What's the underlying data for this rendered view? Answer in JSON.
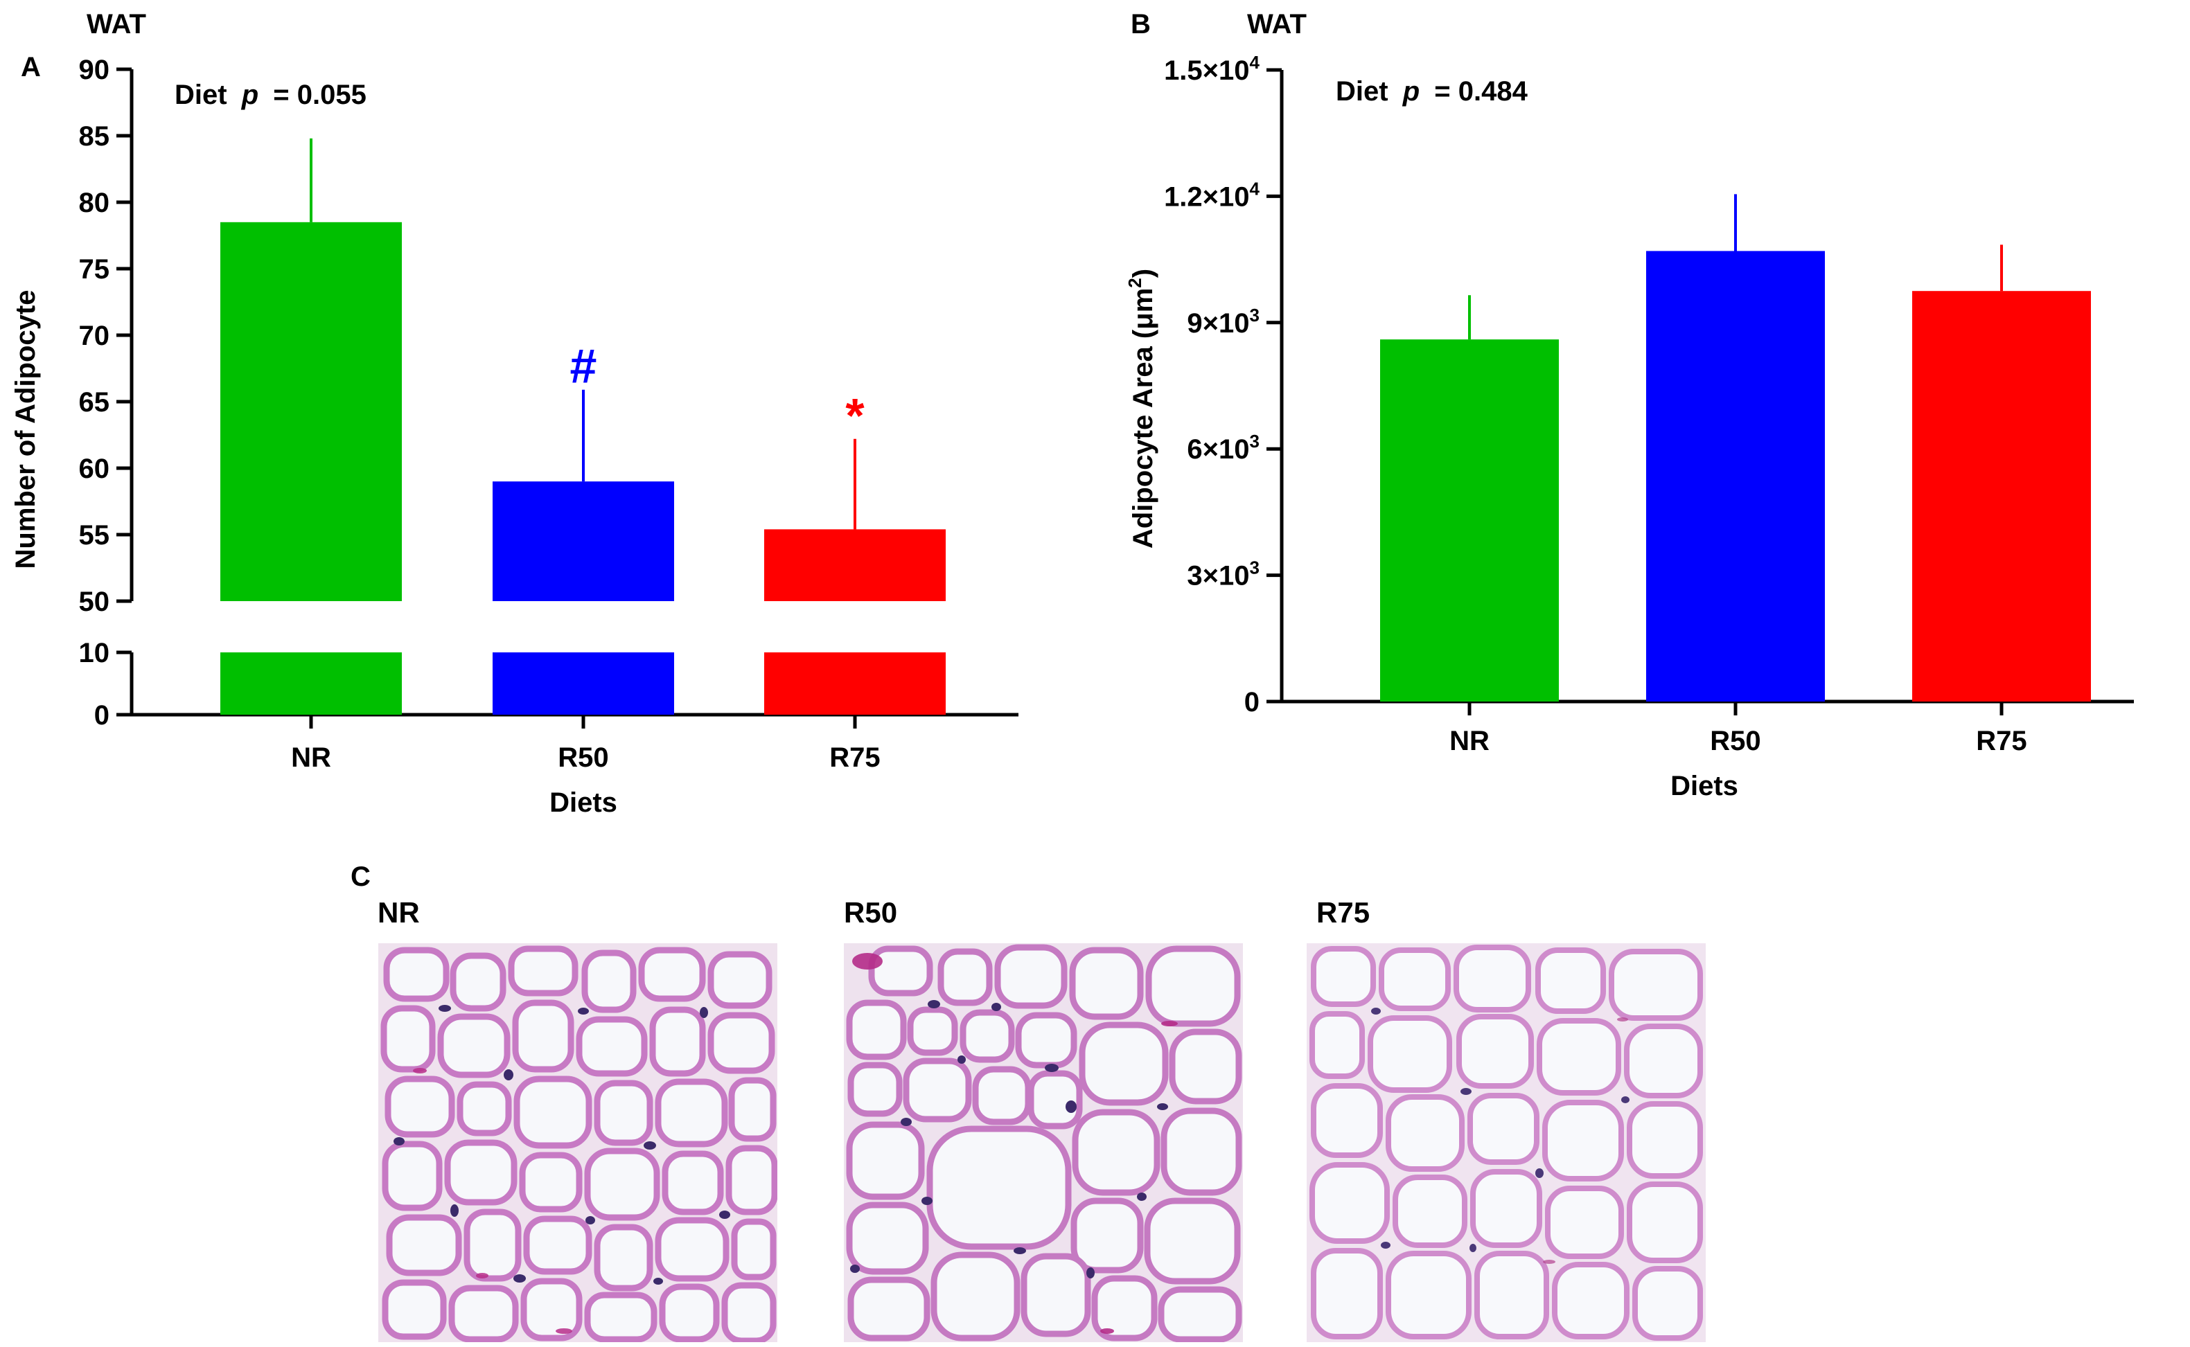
{
  "chart_data": [
    {
      "type": "bar",
      "panel": "A",
      "tissue_label": "WAT",
      "annotation": {
        "prefix": "Diet",
        "italic": "p",
        "suffix": "= 0.055"
      },
      "title": "",
      "xlabel": "Diets",
      "ylabel": "Number of Adipocyte",
      "categories": [
        "NR",
        "R50",
        "R75"
      ],
      "values": [
        78.5,
        59.0,
        55.4
      ],
      "errors": [
        6.3,
        6.9,
        6.8
      ],
      "colors": [
        "#00bf00",
        "#0000ff",
        "#ff0000"
      ],
      "significance": [
        "",
        "#",
        "*"
      ],
      "axis_break": {
        "lower": [
          0,
          10
        ],
        "upper": [
          50,
          90
        ]
      },
      "yticks_lower": [
        "0",
        "10"
      ],
      "yticks_upper": [
        "50",
        "55",
        "60",
        "65",
        "70",
        "75",
        "80",
        "85",
        "90"
      ],
      "yticks_upper_values": [
        50,
        55,
        60,
        65,
        70,
        75,
        80,
        85,
        90
      ],
      "grid": false
    },
    {
      "type": "bar",
      "panel": "B",
      "tissue_label": "WAT",
      "annotation": {
        "prefix": "Diet",
        "italic": "p",
        "suffix": "= 0.484"
      },
      "title": "",
      "xlabel": "Diets",
      "ylabel": "Adipocyte Area (μm²)",
      "ylabel_parts": {
        "main": "Adipocyte Area (μm",
        "sup": "2",
        "end": ")"
      },
      "categories": [
        "NR",
        "R50",
        "R75"
      ],
      "values": [
        8600,
        10700,
        9750
      ],
      "errors": [
        1050,
        1350,
        1100
      ],
      "colors": [
        "#00bf00",
        "#0000ff",
        "#ff0000"
      ],
      "ylim": [
        0,
        15000
      ],
      "yticks": [
        {
          "value": 0,
          "base": "0",
          "exp": ""
        },
        {
          "value": 3000,
          "base": "3×10",
          "exp": "3"
        },
        {
          "value": 6000,
          "base": "6×10",
          "exp": "3"
        },
        {
          "value": 9000,
          "base": "9×10",
          "exp": "3"
        },
        {
          "value": 12000,
          "base": "1.2×10",
          "exp": "4"
        },
        {
          "value": 15000,
          "base": "1.5×10",
          "exp": "4"
        }
      ],
      "grid": false
    }
  ],
  "panel_c": {
    "label": "C",
    "images": [
      {
        "label": "NR",
        "description": "H&E stained adipose tissue section, NR"
      },
      {
        "label": "R50",
        "description": "H&E stained adipose tissue section, R50"
      },
      {
        "label": "R75",
        "description": "H&E stained adipose tissue section, R75"
      }
    ]
  }
}
